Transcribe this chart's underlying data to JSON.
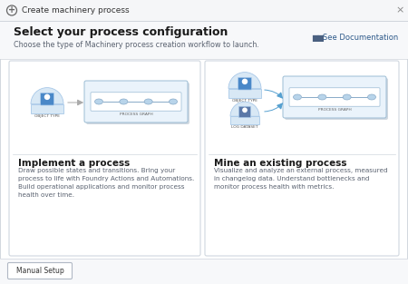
{
  "bg_color": "#f0f2f5",
  "dialog_bg": "#ffffff",
  "title": "Select your process configuration",
  "subtitle": "Choose the type of Machinery process creation workflow to launch.",
  "dialog_title": "Create machinery process",
  "doc_button": "See Documentation",
  "card1_title": "Implement a process",
  "card1_body": "Draw possible states and transitions. Bring your\nprocess to life with Foundry Actions and Automations.\nBuild operational applications and monitor process\nhealth over time.",
  "card2_title": "Mine an existing process",
  "card2_body": "Visualize and analyze an external process, measured\nin changelog data. Understand bottlenecks and\nmonitor process health with metrics.",
  "footer_button": "Manual Setup",
  "card_border": "#d0d7df",
  "card_bg": "#ffffff",
  "node_bg": "#d8e8f5",
  "node_border": "#a8c8e8",
  "node_icon": "#4a88c8",
  "process_bg": "#eaf3fb",
  "process_border": "#9bbcd4",
  "text_dark": "#1a1a1a",
  "text_light": "#5a6270",
  "text_gray": "#888888",
  "header_bg": "#f7f8fa",
  "topbar_bg": "#f5f6f8",
  "footer_bg": "#f7f8fa",
  "sep_color": "#d0d5dc"
}
